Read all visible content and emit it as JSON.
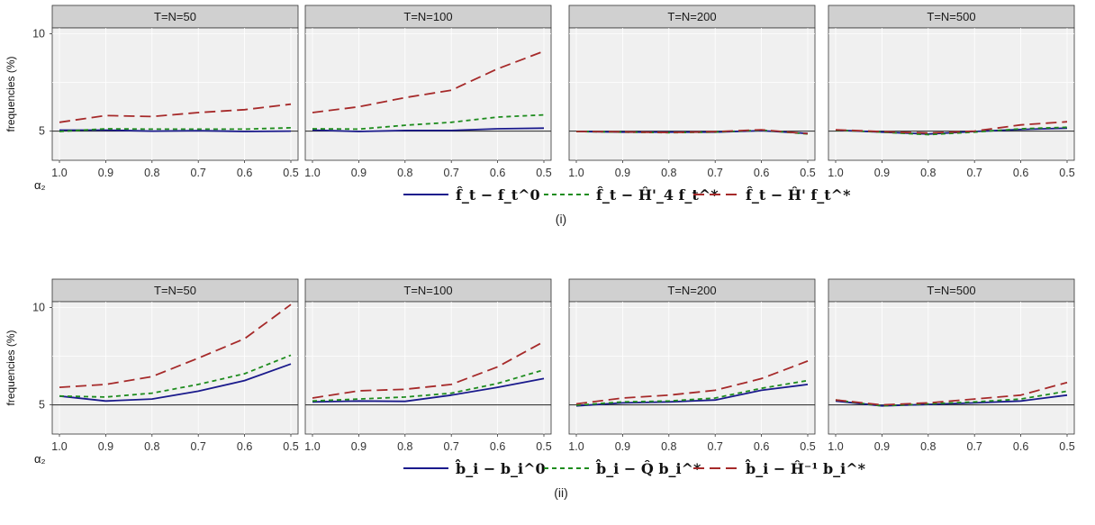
{
  "figure": {
    "xlabel": "α₂",
    "ylabel": "frequencies (%)",
    "x_ticks": [
      "1.0",
      "0.9",
      "0.8",
      "0.7",
      "0.6",
      "0.5"
    ],
    "y_ticks": [
      "5",
      "10"
    ],
    "colors": {
      "navy": "#1a1a8c",
      "green": "#1e8c1e",
      "red": "#a62a2a",
      "panel_bg": "#f0f0f0",
      "strip_bg": "#d0d0d0"
    }
  },
  "chart_data": [
    {
      "type": "line",
      "caption": "(i)",
      "x": [
        1.0,
        0.9,
        0.8,
        0.7,
        0.6,
        0.5
      ],
      "ylim": [
        3.5,
        10.3
      ],
      "hline": 5,
      "legend": [
        "f̂_t − f_t^0",
        "f̂_t − Ĥ'_4 f_t^*",
        "f̂_t − Ĥ' f_t^*"
      ],
      "panels": [
        {
          "title": "T=N=50",
          "series": [
            {
              "values": [
                5.05,
                5.05,
                5.0,
                5.02,
                4.98,
                5.0
              ]
            },
            {
              "values": [
                4.98,
                5.12,
                5.1,
                5.1,
                5.1,
                5.17
              ]
            },
            {
              "values": [
                5.45,
                5.8,
                5.75,
                5.95,
                6.1,
                6.38
              ]
            }
          ]
        },
        {
          "title": "T=N=100",
          "series": [
            {
              "values": [
                5.05,
                4.98,
                5.03,
                5.03,
                5.12,
                5.15
              ]
            },
            {
              "values": [
                5.12,
                5.1,
                5.3,
                5.45,
                5.72,
                5.83
              ]
            },
            {
              "values": [
                5.95,
                6.25,
                6.72,
                7.1,
                8.2,
                9.1
              ]
            }
          ]
        },
        {
          "title": "T=N=200",
          "series": [
            {
              "values": [
                4.98,
                4.95,
                4.95,
                4.95,
                5.02,
                4.88
              ]
            },
            {
              "values": [
                4.98,
                4.95,
                4.92,
                4.95,
                5.05,
                4.85
              ]
            },
            {
              "values": [
                4.98,
                4.96,
                4.93,
                4.97,
                5.07,
                4.87
              ]
            }
          ]
        },
        {
          "title": "T=N=500",
          "series": [
            {
              "values": [
                5.05,
                4.95,
                4.85,
                4.98,
                5.08,
                5.15
              ]
            },
            {
              "values": [
                5.05,
                4.95,
                4.82,
                4.95,
                5.12,
                5.2
              ]
            },
            {
              "values": [
                5.07,
                4.97,
                4.9,
                5.0,
                5.32,
                5.48
              ]
            }
          ]
        }
      ]
    },
    {
      "type": "line",
      "caption": "(ii)",
      "x": [
        1.0,
        0.9,
        0.8,
        0.7,
        0.6,
        0.5
      ],
      "ylim": [
        3.5,
        10.3
      ],
      "hline": 5,
      "legend": [
        "b̂_i − b_i^0",
        "b̂_i − Q̂ b_i^*",
        "b̂_i − Ĥ⁻¹ b_i^*"
      ],
      "panels": [
        {
          "title": "T=N=50",
          "series": [
            {
              "values": [
                5.45,
                5.2,
                5.3,
                5.7,
                6.25,
                7.1
              ]
            },
            {
              "values": [
                5.45,
                5.4,
                5.6,
                6.05,
                6.6,
                7.55
              ]
            },
            {
              "values": [
                5.9,
                6.05,
                6.45,
                7.4,
                8.4,
                10.15
              ]
            }
          ]
        },
        {
          "title": "T=N=100",
          "series": [
            {
              "values": [
                5.15,
                5.2,
                5.18,
                5.5,
                5.9,
                6.35
              ]
            },
            {
              "values": [
                5.2,
                5.3,
                5.4,
                5.6,
                6.1,
                6.8
              ]
            },
            {
              "values": [
                5.35,
                5.72,
                5.8,
                6.05,
                6.95,
                8.25
              ]
            }
          ]
        },
        {
          "title": "T=N=200",
          "series": [
            {
              "values": [
                4.95,
                5.1,
                5.15,
                5.25,
                5.75,
                6.05
              ]
            },
            {
              "values": [
                4.98,
                5.15,
                5.2,
                5.35,
                5.85,
                6.25
              ]
            },
            {
              "values": [
                5.05,
                5.35,
                5.5,
                5.75,
                6.35,
                7.25
              ]
            }
          ]
        },
        {
          "title": "T=N=500",
          "series": [
            {
              "values": [
                5.2,
                4.95,
                5.02,
                5.1,
                5.2,
                5.5
              ]
            },
            {
              "values": [
                5.25,
                4.95,
                5.05,
                5.15,
                5.3,
                5.7
              ]
            },
            {
              "values": [
                5.25,
                5.0,
                5.1,
                5.3,
                5.5,
                6.15
              ]
            }
          ]
        }
      ]
    }
  ]
}
